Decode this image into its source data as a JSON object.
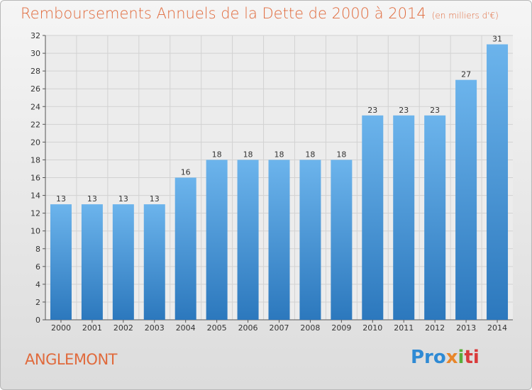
{
  "title": "Remboursements Annuels de la Dette de 2000 à 2014",
  "unit_note": "(en milliers d'€)",
  "place": "ANGLEMONT",
  "brand": {
    "p1": "Pro",
    "p2": "x",
    "p3": "i",
    "p4": "ti"
  },
  "colors": {
    "bar": "#4a9be0",
    "bar_light": "#6cb4ec",
    "bar_dark": "#2c78bd",
    "title": "#e06a3c"
  },
  "chart_data": {
    "type": "bar",
    "title": "Remboursements Annuels de la Dette de 2000 à 2014",
    "xlabel": "",
    "ylabel": "",
    "categories": [
      "2000",
      "2001",
      "2002",
      "2003",
      "2004",
      "2005",
      "2006",
      "2007",
      "2008",
      "2009",
      "2010",
      "2011",
      "2012",
      "2013",
      "2014"
    ],
    "values": [
      13,
      13,
      13,
      13,
      16,
      18,
      18,
      18,
      18,
      18,
      23,
      23,
      23,
      27,
      31
    ],
    "ylim": [
      0,
      32
    ],
    "yticks": [
      0,
      2,
      4,
      6,
      8,
      10,
      12,
      14,
      16,
      18,
      20,
      22,
      24,
      26,
      28,
      30,
      32
    ],
    "grid": true
  }
}
